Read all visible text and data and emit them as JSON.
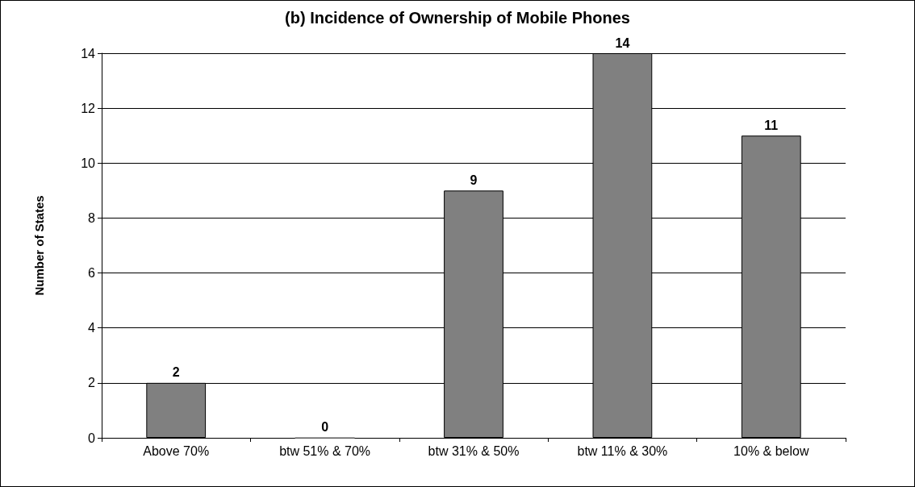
{
  "chart_data": {
    "type": "bar",
    "title": "(b) Incidence of Ownership of Mobile Phones",
    "ylabel": "Number of States",
    "categories": [
      "Above 70%",
      "btw 51% & 70%",
      "btw 31% & 50%",
      "btw 11% & 30%",
      "10% & below"
    ],
    "values": [
      2,
      0,
      9,
      14,
      11
    ],
    "color": "#808080",
    "ylim": [
      0,
      14
    ],
    "yticks": [
      0,
      2,
      4,
      6,
      8,
      10,
      12,
      14
    ],
    "grid": "y",
    "data_labels": true
  }
}
